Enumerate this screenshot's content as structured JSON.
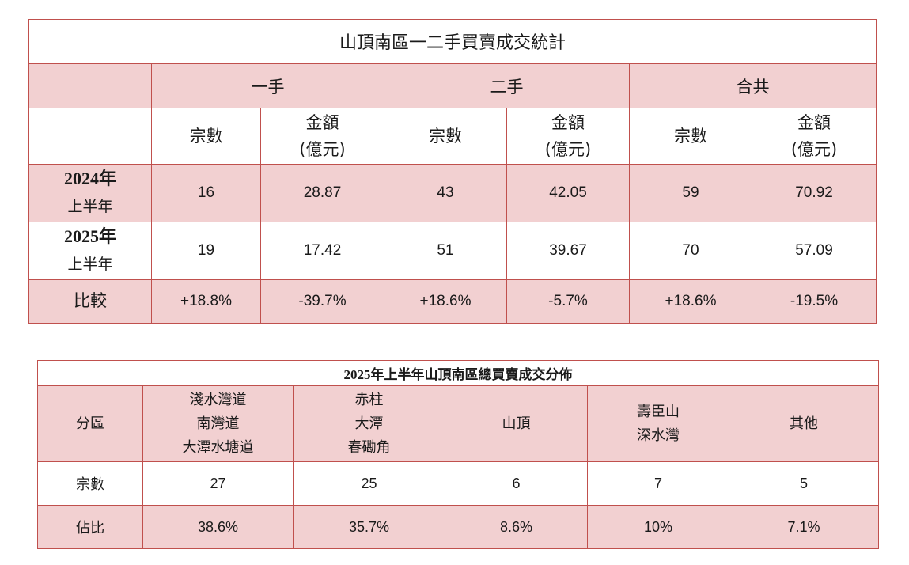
{
  "table1": {
    "title": "山頂南區一二手買賣成交統計",
    "groups": [
      "一手",
      "二手",
      "合共"
    ],
    "sub_headers": {
      "count": "宗數",
      "amount_line1": "金額",
      "amount_line2": "(億元)"
    },
    "rows": [
      {
        "label_year": "2024年",
        "label_half": "上半年",
        "values": [
          "16",
          "28.87",
          "43",
          "42.05",
          "59",
          "70.92"
        ]
      },
      {
        "label_year": "2025年",
        "label_half": "上半年",
        "values": [
          "19",
          "17.42",
          "51",
          "39.67",
          "70",
          "57.09"
        ]
      }
    ],
    "compare": {
      "label": "比較",
      "values": [
        "+18.8%",
        "-39.7%",
        "+18.6%",
        "-5.7%",
        "+18.6%",
        "-19.5%"
      ]
    }
  },
  "table2": {
    "title": "2025年上半年山頂南區總買賣成交分佈",
    "area_label": "分區",
    "areas": [
      [
        "淺水灣道",
        "南灣道",
        "大潭水塘道"
      ],
      [
        "赤柱",
        "大潭",
        "春磡角"
      ],
      [
        "山頂"
      ],
      [
        "壽臣山",
        "深水灣"
      ],
      [
        "其他"
      ]
    ],
    "count_label": "宗數",
    "counts": [
      "27",
      "25",
      "6",
      "7",
      "5"
    ],
    "share_label": "佔比",
    "shares": [
      "38.6%",
      "35.7%",
      "8.6%",
      "10%",
      "7.1%"
    ]
  },
  "colors": {
    "border": "#c0504d",
    "fill": "#f2d0d1"
  }
}
